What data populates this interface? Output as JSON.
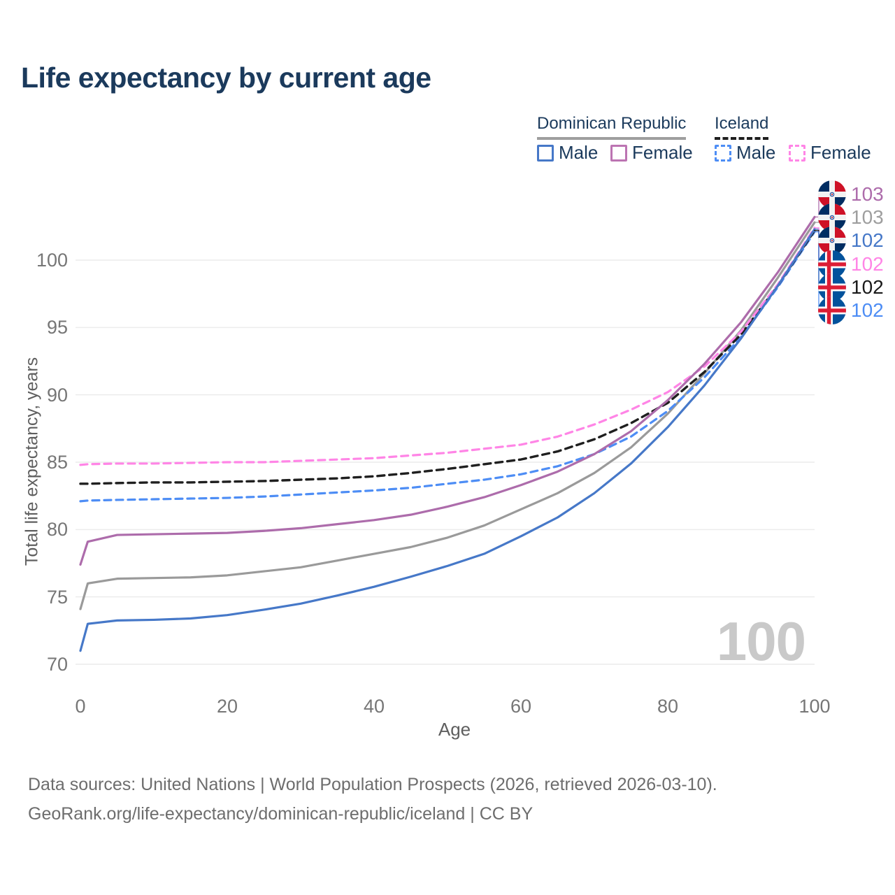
{
  "page": {
    "title": "Life expectancy by current age",
    "footer_line1": "Data sources: United Nations | World Population Prospects (2026, retrieved 2026-03-10).",
    "footer_line2": "GeoRank.org/life-expectancy/dominican-republic/iceland | CC BY",
    "watermark": "100"
  },
  "colors": {
    "title": "#1b3a5c",
    "axis_text": "#767676",
    "grid": "#ececec",
    "watermark": "#c9c9c9",
    "footer": "#6d6d6d"
  },
  "legend": {
    "groups": [
      {
        "label": "Dominican Republic",
        "underline_style": "solid",
        "underline_color": "#9e9e9e",
        "items": [
          {
            "label": "Male",
            "color": "#4678c8",
            "box_style": "solid",
            "series": "dr_male"
          },
          {
            "label": "Female",
            "color": "#bc74b2",
            "box_style": "solid",
            "series": "dr_female"
          }
        ]
      },
      {
        "label": "Iceland",
        "underline_style": "dashed",
        "underline_color": "#1f1f1f",
        "items": [
          {
            "label": "Male",
            "color": "#4d8df5",
            "box_style": "dashed",
            "series": "is_male"
          },
          {
            "label": "Female",
            "color": "#ff85e6",
            "box_style": "dashed",
            "series": "is_female"
          }
        ]
      }
    ]
  },
  "chart_data": {
    "type": "line",
    "title": "Life expectancy by current age",
    "xlabel": "Age",
    "ylabel": "Total life expectancy, years",
    "xlim": [
      0,
      100
    ],
    "ylim": [
      70,
      103.5
    ],
    "xticks": [
      0,
      20,
      40,
      60,
      80,
      100
    ],
    "yticks": [
      70,
      75,
      80,
      85,
      90,
      95,
      100
    ],
    "grid": "horizontal",
    "legend_position": "top-right",
    "x": [
      0,
      1,
      5,
      10,
      15,
      20,
      25,
      30,
      35,
      40,
      45,
      50,
      55,
      60,
      65,
      70,
      75,
      80,
      85,
      90,
      95,
      100
    ],
    "series": [
      {
        "key": "dr_total",
        "name": "Dominican Republic (all)",
        "color": "#9a9a9a",
        "style": "solid",
        "values": [
          74.1,
          76.0,
          76.35,
          76.4,
          76.45,
          76.6,
          76.9,
          77.2,
          77.7,
          78.2,
          78.7,
          79.4,
          80.3,
          81.5,
          82.7,
          84.2,
          86.1,
          88.6,
          91.6,
          94.8,
          98.7,
          102.8
        ]
      },
      {
        "key": "is_male",
        "name": "Iceland Male",
        "color": "#4d8df5",
        "style": "dashed",
        "values": [
          82.1,
          82.15,
          82.2,
          82.25,
          82.3,
          82.35,
          82.45,
          82.6,
          82.75,
          82.9,
          83.1,
          83.4,
          83.7,
          84.1,
          84.7,
          85.6,
          86.9,
          88.8,
          91.3,
          94.3,
          98.0,
          102.1
        ]
      },
      {
        "key": "is_total",
        "name": "Iceland (all)",
        "color": "#1f1f1f",
        "style": "dashed",
        "values": [
          83.4,
          83.4,
          83.45,
          83.5,
          83.5,
          83.55,
          83.6,
          83.7,
          83.8,
          83.95,
          84.2,
          84.5,
          84.85,
          85.2,
          85.8,
          86.7,
          87.9,
          89.4,
          91.7,
          94.5,
          98.1,
          102.2
        ]
      },
      {
        "key": "is_female",
        "name": "Iceland Female",
        "color": "#ff85e6",
        "style": "dashed",
        "values": [
          84.8,
          84.85,
          84.9,
          84.9,
          84.95,
          85.0,
          85.0,
          85.1,
          85.2,
          85.3,
          85.5,
          85.7,
          86.0,
          86.3,
          86.9,
          87.8,
          88.9,
          90.2,
          92.1,
          94.7,
          98.2,
          102.4
        ]
      },
      {
        "key": "dr_male",
        "name": "Dominican Republic Male",
        "color": "#4678c8",
        "style": "solid",
        "values": [
          71.0,
          73.0,
          73.25,
          73.3,
          73.4,
          73.65,
          74.05,
          74.5,
          75.1,
          75.75,
          76.5,
          77.3,
          78.2,
          79.5,
          80.9,
          82.7,
          84.9,
          87.6,
          90.7,
          94.2,
          98.1,
          102.3
        ]
      },
      {
        "key": "dr_female",
        "name": "Dominican Republic Female",
        "color": "#ad6cab",
        "style": "solid",
        "values": [
          77.4,
          79.1,
          79.6,
          79.65,
          79.7,
          79.75,
          79.9,
          80.1,
          80.4,
          80.7,
          81.1,
          81.7,
          82.4,
          83.3,
          84.3,
          85.6,
          87.3,
          89.6,
          92.3,
          95.4,
          99.1,
          103.2
        ]
      }
    ],
    "watermark": "100"
  },
  "end_labels": [
    {
      "flag": "dominican-republic",
      "value": "103",
      "color": "#ad6cab",
      "series": "dr_female"
    },
    {
      "flag": "dominican-republic",
      "value": "103",
      "color": "#9e9e9e",
      "series": "dr_total"
    },
    {
      "flag": "dominican-republic",
      "value": "102",
      "color": "#4678c8",
      "series": "dr_male"
    },
    {
      "flag": "iceland",
      "value": "102",
      "color": "#ff85e6",
      "series": "is_female"
    },
    {
      "flag": "iceland",
      "value": "102",
      "color": "#1a1a1a",
      "series": "is_total"
    },
    {
      "flag": "iceland",
      "value": "102",
      "color": "#4d8df5",
      "series": "is_male"
    }
  ]
}
